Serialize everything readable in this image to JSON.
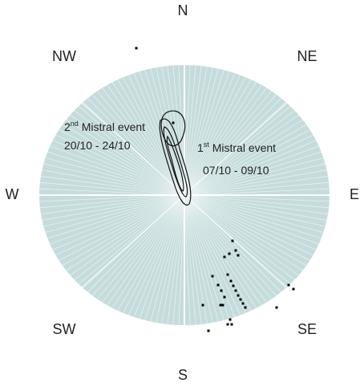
{
  "compass": {
    "n": "N",
    "ne": "NE",
    "e": "E",
    "se": "SE",
    "s": "S",
    "sw": "SW",
    "w": "W",
    "nw": "NW"
  },
  "annotations": [
    {
      "number": "2",
      "suffix": "nd",
      "label": " Mistral event",
      "dates": "20/10 - 24/10"
    },
    {
      "number": "1",
      "suffix": "st",
      "label": " Mistral event",
      "dates": "07/10 - 09/10"
    }
  ]
}
